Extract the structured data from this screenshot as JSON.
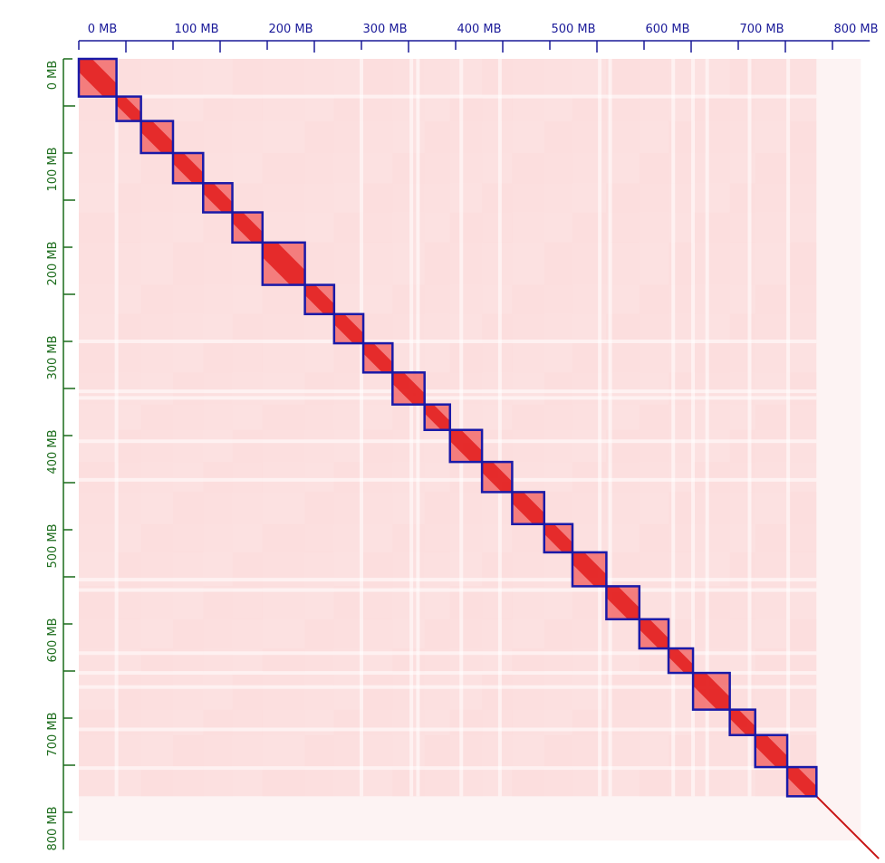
{
  "chart_data": {
    "type": "heatmap",
    "title": "",
    "xlabel": "",
    "ylabel": "",
    "x_axis": {
      "position": "top",
      "range_mb": [
        0,
        830
      ],
      "ticks": [
        0,
        100,
        200,
        300,
        400,
        500,
        600,
        700,
        800
      ],
      "tick_labels": [
        "0 MB",
        "100 MB",
        "200 MB",
        "300 MB",
        "400 MB",
        "500 MB",
        "600 MB",
        "700 MB",
        "800 MB"
      ],
      "minor_ticks": [
        50,
        150,
        250,
        350,
        450,
        550,
        650,
        750
      ],
      "color": "#1a1a99"
    },
    "y_axis": {
      "position": "left",
      "range_mb": [
        0,
        830
      ],
      "ticks": [
        0,
        100,
        200,
        300,
        400,
        500,
        600,
        700,
        800
      ],
      "tick_labels": [
        "0 MB",
        "100 MB",
        "200 MB",
        "300 MB",
        "400 MB",
        "500 MB",
        "600 MB",
        "700 MB",
        "800 MB"
      ],
      "minor_ticks": [
        50,
        150,
        250,
        350,
        450,
        550,
        650,
        750
      ],
      "color": "#1a6b1a"
    },
    "grid": false,
    "assembled_region_mb": [
      0,
      783
    ],
    "colors": {
      "min": "#ffffff",
      "background": "#fde9e9",
      "max": "#e01010",
      "box": "#1a1aa8"
    },
    "boxes_mb": [
      [
        0,
        40
      ],
      [
        40,
        66
      ],
      [
        66,
        100
      ],
      [
        100,
        132
      ],
      [
        132,
        163
      ],
      [
        163,
        195
      ],
      [
        195,
        240
      ],
      [
        240,
        271
      ],
      [
        271,
        302
      ],
      [
        302,
        333
      ],
      [
        333,
        367
      ],
      [
        367,
        394
      ],
      [
        394,
        428
      ],
      [
        428,
        460
      ],
      [
        460,
        494
      ],
      [
        494,
        524
      ],
      [
        524,
        560
      ],
      [
        560,
        595
      ],
      [
        595,
        626
      ],
      [
        626,
        652
      ],
      [
        652,
        691
      ],
      [
        691,
        718
      ],
      [
        718,
        752
      ],
      [
        752,
        783
      ]
    ],
    "band_gaps_mb": [
      40,
      300,
      353,
      360,
      406,
      447,
      553,
      564,
      631,
      652,
      667,
      712,
      753
    ]
  }
}
